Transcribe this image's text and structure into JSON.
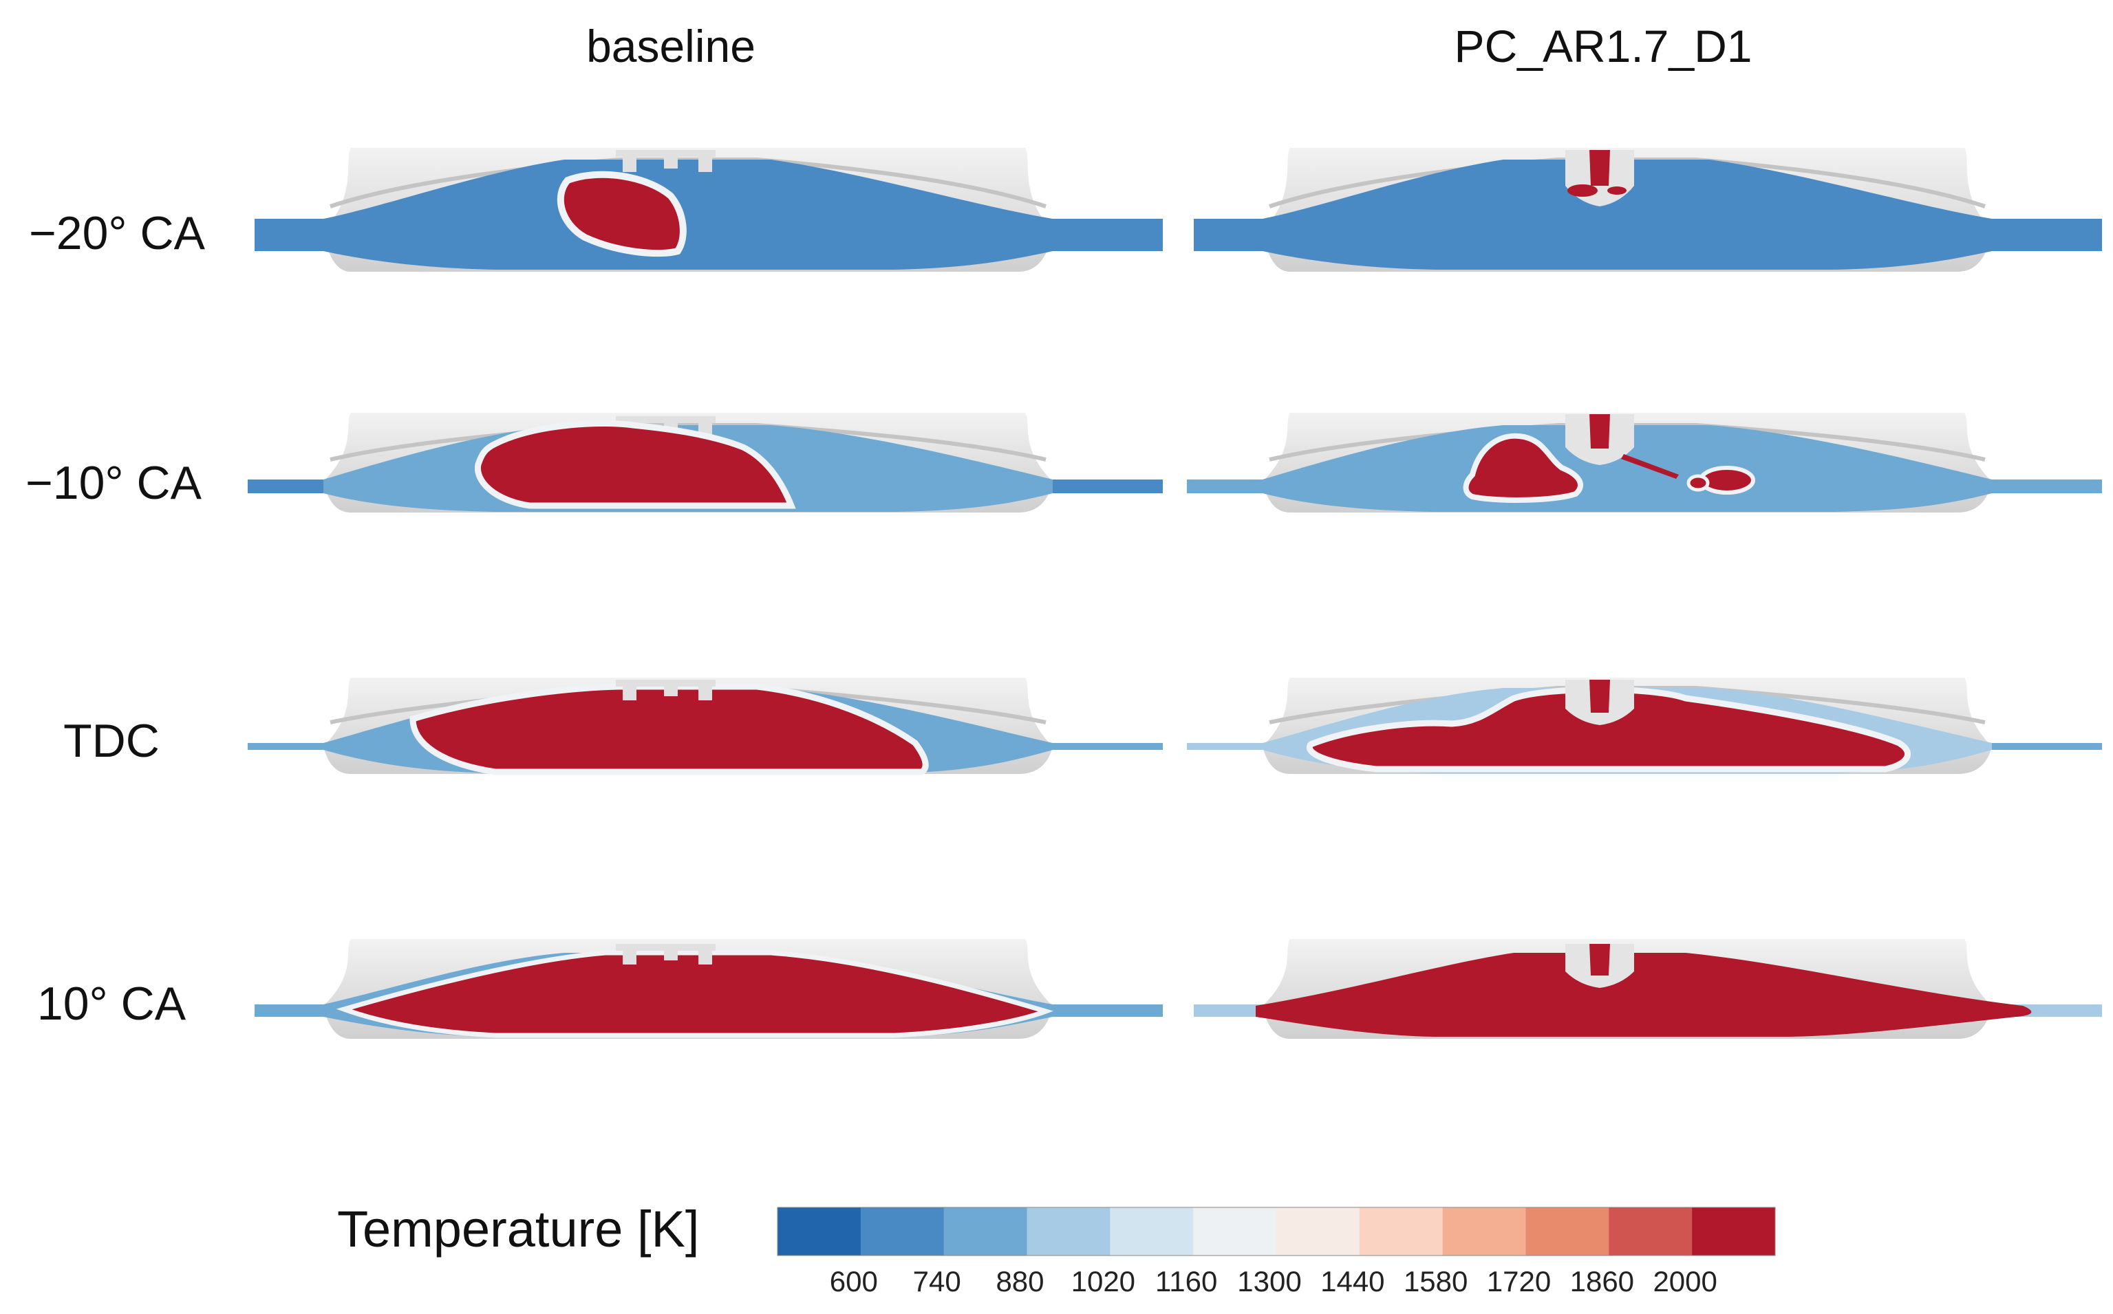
{
  "columns": [
    "baseline",
    "PC_AR1.7_D1"
  ],
  "rows": [
    "−20° CA",
    "−10° CA",
    "TDC",
    "10° CA"
  ],
  "colorbar": {
    "title": "Temperature [K]",
    "ticks": [
      "600",
      "740",
      "880",
      "1020",
      "1160",
      "1300",
      "1440",
      "1580",
      "1720",
      "1860",
      "2000"
    ],
    "colors": [
      "#2166ac",
      "#4a8ac4",
      "#6ea9d3",
      "#a7cbe4",
      "#d2e4f0",
      "#edf1f4",
      "#f7ebe6",
      "#fbd3c2",
      "#f4ae92",
      "#e88a6c",
      "#d0544f",
      "#b2182b"
    ]
  },
  "palette": {
    "cold": "#4a8ac4",
    "warm_mid": "#6ea9d3",
    "light": "#a7cbe4",
    "hot": "#b2182b",
    "geometry": "#d9d9d9",
    "geometry_dark": "#bdbdbd"
  }
}
